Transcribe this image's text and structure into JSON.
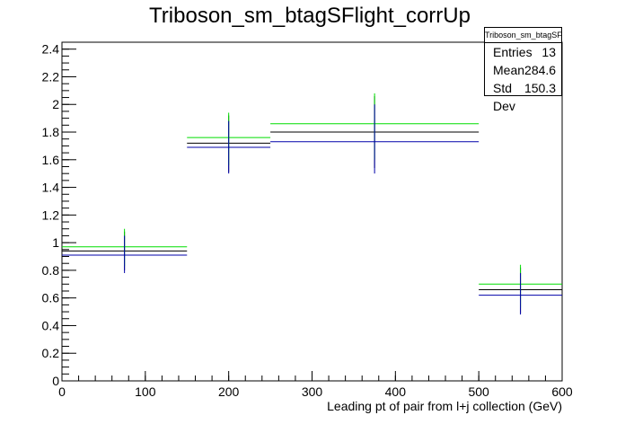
{
  "chart_data": {
    "type": "histogram",
    "title": "Triboson_sm_btagSFlight_corrUp",
    "xlabel": "Leading pt of pair from l+j collection (GeV)",
    "ylabel": "",
    "xlim": [
      0,
      600
    ],
    "ylim": [
      0,
      2.45
    ],
    "x_ticks": [
      0,
      100,
      200,
      300,
      400,
      500,
      600
    ],
    "y_ticks": [
      0,
      0.2,
      0.4,
      0.6,
      0.8,
      1,
      1.2,
      1.4,
      1.6,
      1.8,
      2,
      2.2,
      2.4
    ],
    "bins": [
      {
        "low": 0,
        "high": 150,
        "center": 75
      },
      {
        "low": 150,
        "high": 250,
        "center": 200
      },
      {
        "low": 250,
        "high": 500,
        "center": 375
      },
      {
        "low": 500,
        "high": 600,
        "center": 550
      }
    ],
    "series": [
      {
        "color": "#000000",
        "values": [
          0.94,
          1.72,
          1.8,
          0.66
        ],
        "err_low": [
          0.8,
          1.51,
          1.54,
          0.49
        ],
        "err_high": [
          1.08,
          1.92,
          2.06,
          0.82
        ]
      },
      {
        "color": "#00dd00",
        "values": [
          0.97,
          1.76,
          1.86,
          0.7
        ],
        "err_low": [
          0.83,
          1.56,
          1.6,
          0.53
        ],
        "err_high": [
          1.1,
          1.94,
          2.08,
          0.84
        ]
      },
      {
        "color": "#0000aa",
        "values": [
          0.91,
          1.69,
          1.73,
          0.62
        ],
        "err_low": [
          0.78,
          1.5,
          1.5,
          0.48
        ],
        "err_high": [
          1.05,
          1.88,
          2.0,
          0.78
        ]
      }
    ],
    "grid": false,
    "legend_position": "top-right"
  },
  "stats": {
    "title": "Triboson_sm_btagSFlight_corrUp",
    "rows": [
      {
        "label": "Entries",
        "value": "13"
      },
      {
        "label": "Mean",
        "value": "284.6"
      },
      {
        "label": "Std Dev",
        "value": "150.3"
      }
    ]
  }
}
